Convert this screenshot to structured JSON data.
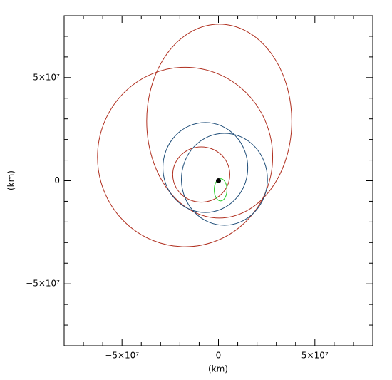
{
  "chart_data": {
    "type": "ellipse",
    "xlabel": "(km)",
    "ylabel": "(km)",
    "xlim": [
      -80000000,
      80000000
    ],
    "ylim": [
      -80000000,
      80000000
    ],
    "xticks": [
      {
        "value": -50000000,
        "label": "−5×10⁷"
      },
      0,
      {
        "value": 50000000,
        "label": "5×10⁷"
      }
    ],
    "yticks": [
      {
        "value": -50000000,
        "label": "−5×10⁷"
      },
      0,
      {
        "value": 50000000,
        "label": "5×10⁷"
      }
    ],
    "xminor": [
      -70000000,
      -60000000,
      -40000000,
      -30000000,
      -20000000,
      -10000000,
      10000000,
      20000000,
      30000000,
      40000000,
      60000000,
      70000000
    ],
    "yminor": [
      -70000000,
      -60000000,
      -40000000,
      -30000000,
      -20000000,
      -10000000,
      10000000,
      20000000,
      30000000,
      40000000,
      60000000,
      70000000
    ],
    "series": [
      {
        "color": "#b03020",
        "cx": 400000,
        "cy": 28900000,
        "rx": 37600000,
        "ry": 47000000
      },
      {
        "color": "#b03020",
        "cx": -17300000,
        "cy": 11500000,
        "rx": 45400000,
        "ry": 43500000
      },
      {
        "color": "#b03020",
        "cx": -8900000,
        "cy": 3000000,
        "rx": 14800000,
        "ry": 13400000
      },
      {
        "color": "#1f4e79",
        "cx": -6800000,
        "cy": 6400000,
        "rx": 22000000,
        "ry": 21800000
      },
      {
        "color": "#1f4e79",
        "cx": 3100000,
        "cy": 700000,
        "rx": 22300000,
        "ry": 22300000
      },
      {
        "color": "#22cc22",
        "cx": 1100000,
        "cy": -4400000,
        "rx": 3300000,
        "ry": 5400000
      }
    ],
    "sun": {
      "x": 0,
      "y": 0,
      "color": "#000000"
    }
  }
}
